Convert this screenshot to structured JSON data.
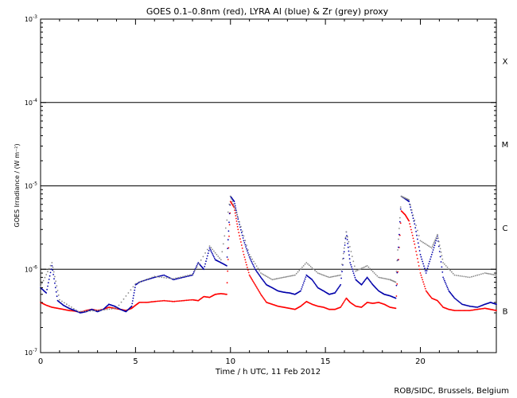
{
  "chart_data": {
    "type": "scatter",
    "title": "GOES 0.1–0.8nm (red), LYRA Al (blue) & Zr (grey) proxy",
    "xlabel": "Time / h UTC, 11 Feb 2012",
    "ylabel": "GOES Irradiance / (W m⁻²)",
    "credit": "ROB/SIDC, Brussels, Belgium",
    "xlim": [
      0,
      24
    ],
    "ylim": [
      1e-07,
      0.001
    ],
    "yscale": "log",
    "x_ticks": [
      {
        "value": 0,
        "label": "0"
      },
      {
        "value": 5,
        "label": "5"
      },
      {
        "value": 10,
        "label": "10"
      },
      {
        "value": 15,
        "label": "15"
      },
      {
        "value": 20,
        "label": "20"
      }
    ],
    "y_ticks": [
      {
        "exp": -7,
        "base": "10",
        "sup": "-7"
      },
      {
        "exp": -6,
        "base": "10",
        "sup": "-6"
      },
      {
        "exp": -5,
        "base": "10",
        "sup": "-5"
      },
      {
        "exp": -4,
        "base": "10",
        "sup": "-4"
      },
      {
        "exp": -3,
        "base": "10",
        "sup": "-3"
      }
    ],
    "flare_lines": [
      1e-06,
      1e-05,
      0.0001
    ],
    "flare_classes": [
      {
        "label": "X",
        "value": 0.000316
      },
      {
        "label": "M",
        "value": 3.16e-05
      },
      {
        "label": "C",
        "value": 3.16e-06
      },
      {
        "label": "B",
        "value": 3.16e-07
      }
    ],
    "series": [
      {
        "color": "#ff0000",
        "points": [
          [
            0,
            4e-07
          ],
          [
            0.3,
            3.7e-07
          ],
          [
            0.6,
            3.5e-07
          ],
          [
            0.9,
            3.4e-07
          ],
          [
            1.2,
            3.3e-07
          ],
          [
            1.5,
            3.2e-07
          ],
          [
            1.8,
            3.15e-07
          ],
          [
            2.1,
            3.05e-07
          ],
          [
            2.4,
            3.2e-07
          ],
          [
            2.7,
            3.3e-07
          ],
          [
            3.0,
            3.2e-07
          ],
          [
            3.3,
            3.3e-07
          ],
          [
            3.6,
            3.5e-07
          ],
          [
            3.9,
            3.4e-07
          ],
          [
            4.2,
            3.3e-07
          ],
          [
            4.5,
            3.2e-07
          ],
          [
            4.8,
            3.4e-07
          ],
          [
            5.0,
            3.7e-07
          ],
          [
            5.2,
            4e-07
          ],
          [
            5.6,
            4e-07
          ],
          [
            6.0,
            4.1e-07
          ],
          [
            6.5,
            4.2e-07
          ],
          [
            7.0,
            4.1e-07
          ],
          [
            7.5,
            4.2e-07
          ],
          [
            8.0,
            4.3e-07
          ],
          [
            8.3,
            4.2e-07
          ],
          [
            8.6,
            4.7e-07
          ],
          [
            8.9,
            4.6e-07
          ],
          [
            9.2,
            5e-07
          ],
          [
            9.5,
            5.1e-07
          ],
          [
            9.8,
            5e-07
          ],
          [
            10.0,
            6.5e-06
          ],
          [
            10.2,
            5.5e-06
          ],
          [
            10.4,
            3e-06
          ],
          [
            10.7,
            1.5e-06
          ],
          [
            11.0,
            8.5e-07
          ],
          [
            11.3,
            6.5e-07
          ],
          [
            11.6,
            5e-07
          ],
          [
            11.9,
            4e-07
          ],
          [
            12.2,
            3.8e-07
          ],
          [
            12.5,
            3.6e-07
          ],
          [
            12.8,
            3.5e-07
          ],
          [
            13.1,
            3.4e-07
          ],
          [
            13.4,
            3.3e-07
          ],
          [
            13.7,
            3.6e-07
          ],
          [
            14.0,
            4.1e-07
          ],
          [
            14.3,
            3.8e-07
          ],
          [
            14.6,
            3.6e-07
          ],
          [
            14.9,
            3.5e-07
          ],
          [
            15.2,
            3.3e-07
          ],
          [
            15.5,
            3.3e-07
          ],
          [
            15.8,
            3.5e-07
          ],
          [
            16.1,
            4.5e-07
          ],
          [
            16.3,
            4e-07
          ],
          [
            16.6,
            3.6e-07
          ],
          [
            16.9,
            3.5e-07
          ],
          [
            17.2,
            4e-07
          ],
          [
            17.5,
            3.9e-07
          ],
          [
            17.8,
            4e-07
          ],
          [
            18.1,
            3.8e-07
          ],
          [
            18.4,
            3.5e-07
          ],
          [
            18.7,
            3.4e-07
          ],
          [
            19.0,
            5e-06
          ],
          [
            19.2,
            4.5e-06
          ],
          [
            19.4,
            3.8e-06
          ],
          [
            19.7,
            2e-06
          ],
          [
            20.0,
            9e-07
          ],
          [
            20.3,
            5.5e-07
          ],
          [
            20.6,
            4.5e-07
          ],
          [
            20.9,
            4.2e-07
          ],
          [
            21.2,
            3.5e-07
          ],
          [
            21.5,
            3.3e-07
          ],
          [
            21.8,
            3.2e-07
          ],
          [
            22.2,
            3.2e-07
          ],
          [
            22.6,
            3.2e-07
          ],
          [
            23.0,
            3.3e-07
          ],
          [
            23.4,
            3.4e-07
          ],
          [
            23.7,
            3.3e-07
          ],
          [
            24.0,
            3.2e-07
          ]
        ]
      },
      {
        "color": "#0000aa",
        "points": [
          [
            0,
            6e-07
          ],
          [
            0.3,
            5.2e-07
          ],
          [
            0.6,
            1.1e-06
          ],
          [
            0.9,
            4.2e-07
          ],
          [
            1.2,
            3.7e-07
          ],
          [
            1.5,
            3.4e-07
          ],
          [
            1.8,
            3.2e-07
          ],
          [
            2.1,
            3e-07
          ],
          [
            2.4,
            3.1e-07
          ],
          [
            2.7,
            3.3e-07
          ],
          [
            3.0,
            3.1e-07
          ],
          [
            3.3,
            3.3e-07
          ],
          [
            3.6,
            3.8e-07
          ],
          [
            3.9,
            3.6e-07
          ],
          [
            4.2,
            3.3e-07
          ],
          [
            4.5,
            3.1e-07
          ],
          [
            4.8,
            3.6e-07
          ],
          [
            5.0,
            6.5e-07
          ],
          [
            5.2,
            7e-07
          ],
          [
            5.6,
            7.5e-07
          ],
          [
            6.0,
            8e-07
          ],
          [
            6.5,
            8.5e-07
          ],
          [
            7.0,
            7.5e-07
          ],
          [
            7.5,
            8e-07
          ],
          [
            8.0,
            8.5e-07
          ],
          [
            8.3,
            1.2e-06
          ],
          [
            8.6,
            1e-06
          ],
          [
            8.9,
            1.8e-06
          ],
          [
            9.2,
            1.3e-06
          ],
          [
            9.5,
            1.2e-06
          ],
          [
            9.8,
            1.1e-06
          ],
          [
            10.0,
            7.5e-06
          ],
          [
            10.2,
            6.5e-06
          ],
          [
            10.4,
            4e-06
          ],
          [
            10.7,
            2.2e-06
          ],
          [
            11.0,
            1.4e-06
          ],
          [
            11.3,
            1e-06
          ],
          [
            11.6,
            8e-07
          ],
          [
            11.9,
            6.5e-07
          ],
          [
            12.2,
            6e-07
          ],
          [
            12.5,
            5.5e-07
          ],
          [
            12.8,
            5.3e-07
          ],
          [
            13.1,
            5.2e-07
          ],
          [
            13.4,
            5e-07
          ],
          [
            13.7,
            5.5e-07
          ],
          [
            14.0,
            8.5e-07
          ],
          [
            14.3,
            7.5e-07
          ],
          [
            14.6,
            6e-07
          ],
          [
            14.9,
            5.5e-07
          ],
          [
            15.2,
            5e-07
          ],
          [
            15.5,
            5.2e-07
          ],
          [
            15.8,
            6.5e-07
          ],
          [
            16.1,
            2.8e-06
          ],
          [
            16.3,
            1.2e-06
          ],
          [
            16.6,
            7.5e-07
          ],
          [
            16.9,
            6.5e-07
          ],
          [
            17.2,
            8e-07
          ],
          [
            17.5,
            6.5e-07
          ],
          [
            17.8,
            5.5e-07
          ],
          [
            18.1,
            5e-07
          ],
          [
            18.4,
            4.8e-07
          ],
          [
            18.7,
            4.5e-07
          ],
          [
            19.0,
            7.5e-06
          ],
          [
            19.2,
            7e-06
          ],
          [
            19.4,
            6.5e-06
          ],
          [
            19.7,
            3.5e-06
          ],
          [
            20.0,
            1.5e-06
          ],
          [
            20.3,
            9e-07
          ],
          [
            20.6,
            1.5e-06
          ],
          [
            20.9,
            2.5e-06
          ],
          [
            21.2,
            8e-07
          ],
          [
            21.5,
            5.5e-07
          ],
          [
            21.8,
            4.5e-07
          ],
          [
            22.2,
            3.8e-07
          ],
          [
            22.6,
            3.6e-07
          ],
          [
            23.0,
            3.5e-07
          ],
          [
            23.4,
            3.8e-07
          ],
          [
            23.7,
            4e-07
          ],
          [
            24.0,
            3.8e-07
          ]
        ]
      },
      {
        "color": "#888888",
        "points": [
          [
            0,
            6.2e-07
          ],
          [
            0.6,
            1.2e-06
          ],
          [
            1.0,
            4.3e-07
          ],
          [
            2.0,
            3.1e-07
          ],
          [
            3.0,
            3.2e-07
          ],
          [
            4.0,
            3.4e-07
          ],
          [
            5.0,
            6.7e-07
          ],
          [
            6.0,
            8.2e-07
          ],
          [
            7.0,
            7.7e-07
          ],
          [
            8.0,
            8.7e-07
          ],
          [
            8.9,
            1.9e-06
          ],
          [
            9.5,
            1.3e-06
          ],
          [
            10.0,
            7.5e-06
          ],
          [
            10.4,
            4.2e-06
          ],
          [
            11.0,
            1.5e-06
          ],
          [
            11.6,
            9e-07
          ],
          [
            12.2,
            7.5e-07
          ],
          [
            12.8,
            8e-07
          ],
          [
            13.4,
            8.5e-07
          ],
          [
            14.0,
            1.2e-06
          ],
          [
            14.6,
            9e-07
          ],
          [
            15.2,
            8e-07
          ],
          [
            15.8,
            8.5e-07
          ],
          [
            16.1,
            2.8e-06
          ],
          [
            16.6,
            9.5e-07
          ],
          [
            17.2,
            1.1e-06
          ],
          [
            17.8,
            8e-07
          ],
          [
            18.4,
            7.5e-07
          ],
          [
            18.7,
            7e-07
          ],
          [
            19.0,
            7.5e-06
          ],
          [
            19.4,
            6.8e-06
          ],
          [
            20.0,
            2.2e-06
          ],
          [
            20.6,
            1.8e-06
          ],
          [
            20.9,
            2.6e-06
          ],
          [
            21.2,
            1.2e-06
          ],
          [
            21.8,
            8.5e-07
          ],
          [
            22.6,
            8e-07
          ],
          [
            23.4,
            9e-07
          ],
          [
            24.0,
            8.5e-07
          ]
        ]
      }
    ]
  }
}
